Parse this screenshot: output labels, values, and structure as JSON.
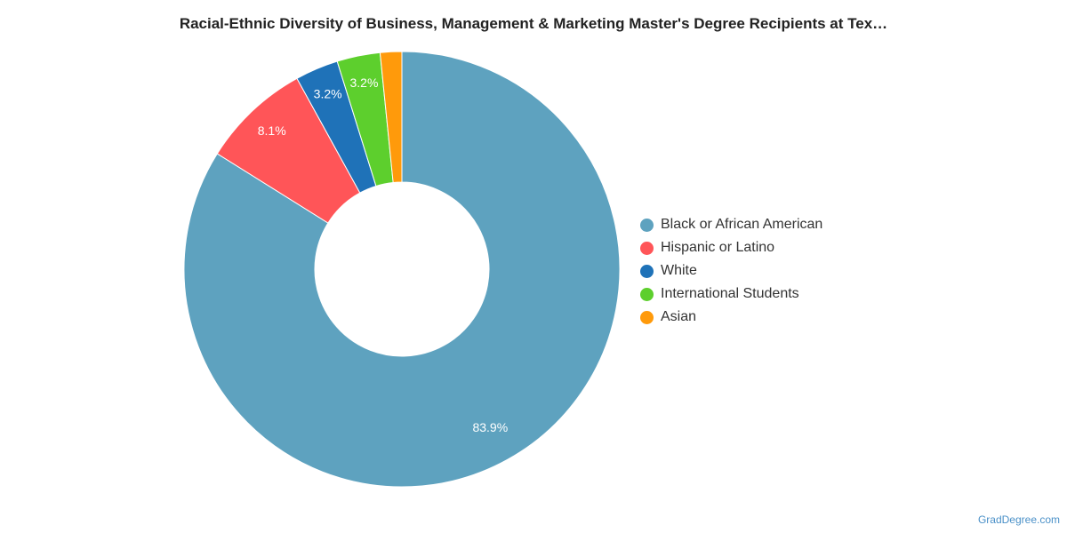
{
  "title": "Racial-Ethnic Diversity of Business, Management & Marketing Master's Degree Recipients at Tex…",
  "credit": "GradDegree.com",
  "chart_data": {
    "type": "pie",
    "donut": true,
    "title": "Racial-Ethnic Diversity of Business, Management & Marketing Master's Degree Recipients at Tex…",
    "legend_position": "right",
    "categories": [
      "Black or African American",
      "Hispanic or Latino",
      "White",
      "International Students",
      "Asian"
    ],
    "values": [
      83.9,
      8.1,
      3.2,
      3.2,
      1.6
    ],
    "data_labels": [
      "83.9%",
      "8.1%",
      "3.2%",
      "3.2%",
      ""
    ],
    "colors": [
      "#5ea2bf",
      "#ff5558",
      "#1f72b8",
      "#5dcf2d",
      "#ff9a0b"
    ]
  }
}
